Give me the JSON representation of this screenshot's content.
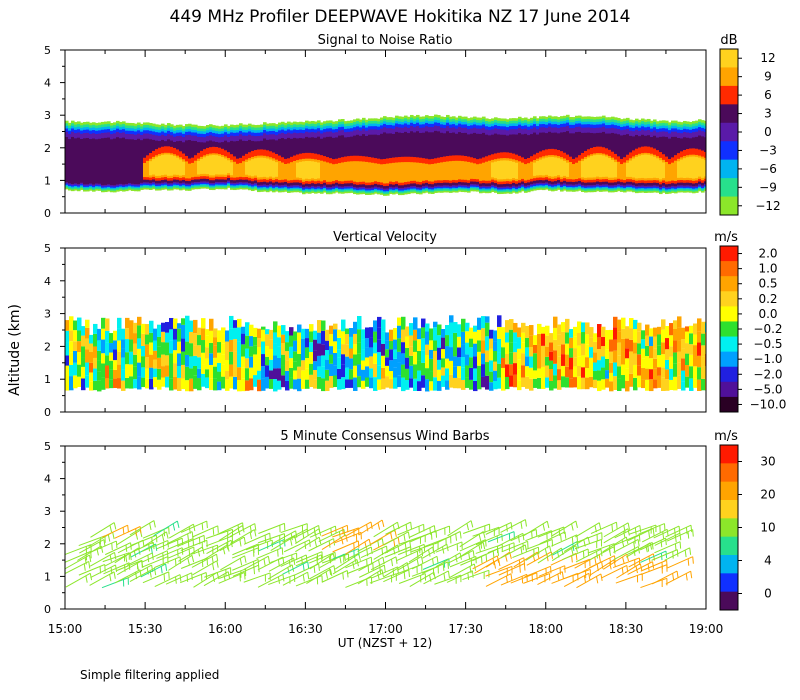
{
  "figure": {
    "title": "449 MHz Profiler DEEPWAVE Hokitika NZ 17 June 2014",
    "ylabel": "Altitude (km)",
    "xlabel": "UT  (NZST + 12)",
    "footnote": "Simple filtering applied",
    "x_ticks": [
      "15:00",
      "15:30",
      "16:00",
      "16:30",
      "17:00",
      "17:30",
      "18:00",
      "18:30",
      "19:00"
    ],
    "y_ticks": [
      "0",
      "1",
      "2",
      "3",
      "4",
      "5"
    ]
  },
  "chart_data": [
    {
      "type": "heatmap",
      "title": "Signal to Noise Ratio",
      "xlabel": "UT  (NZST + 12)",
      "ylabel": "Altitude (km)",
      "xlim_hours": [
        15,
        19
      ],
      "ylim_km": [
        0,
        5
      ],
      "colorbar_unit": "dB",
      "colorbar_labels": [
        "12",
        "9",
        "6",
        "3",
        "0",
        "−3",
        "−6",
        "−9",
        "−12"
      ],
      "colorbar_colors": [
        "#ffd21e",
        "#ffa400",
        "#ff2a00",
        "#4b0a5a",
        "#5a1aa8",
        "#1030ff",
        "#00b4f0",
        "#27e08c",
        "#8ce62a"
      ],
      "echo_top_km": [
        2.8,
        2.8,
        2.75,
        2.7,
        2.7,
        2.75,
        2.8,
        2.85,
        2.95,
        3.0,
        2.95,
        2.9,
        2.95,
        3.0,
        2.9,
        2.8,
        2.85
      ],
      "echo_base_km": [
        0.7,
        0.65,
        0.7,
        0.7,
        0.75,
        0.65,
        0.6,
        0.6,
        0.55,
        0.6,
        0.65,
        0.6,
        0.7,
        0.65,
        0.65,
        0.6,
        0.65
      ]
    },
    {
      "type": "heatmap",
      "title": "Vertical Velocity",
      "xlim_hours": [
        15,
        19
      ],
      "ylim_km": [
        0,
        5
      ],
      "colorbar_unit": "m/s",
      "colorbar_labels": [
        "2.0",
        "1.0",
        "0.5",
        "0.2",
        "0.0",
        "−0.2",
        "−0.5",
        "−1.0",
        "−2.0",
        "−5.0",
        "−10.0"
      ],
      "colorbar_colors": [
        "#ff1a00",
        "#ff6a00",
        "#ffa400",
        "#ffd21e",
        "#ffff00",
        "#2ee02e",
        "#00f0f0",
        "#00a0ff",
        "#2020e0",
        "#50109a",
        "#2a0024"
      ],
      "data_top_km": 2.8,
      "data_base_km": 0.7
    },
    {
      "type": "scatter",
      "title": "5 Minute Consensus Wind Barbs",
      "xlim_hours": [
        15,
        19
      ],
      "ylim_km": [
        0,
        5
      ],
      "colorbar_unit": "m/s",
      "colorbar_labels": [
        "30",
        "20",
        "10",
        "4",
        "0"
      ],
      "colorbar_colors": [
        "#ff1a00",
        "#ff6a00",
        "#ffa400",
        "#ffd21e",
        "#8ce62a",
        "#27e08c",
        "#00b4f0",
        "#1030ff",
        "#4b0a5a"
      ],
      "barb_altitudes_km": [
        0.75,
        1.0,
        1.25,
        1.5,
        1.75,
        2.0,
        2.25
      ],
      "typical_speed_ms": [
        8,
        15
      ]
    }
  ]
}
